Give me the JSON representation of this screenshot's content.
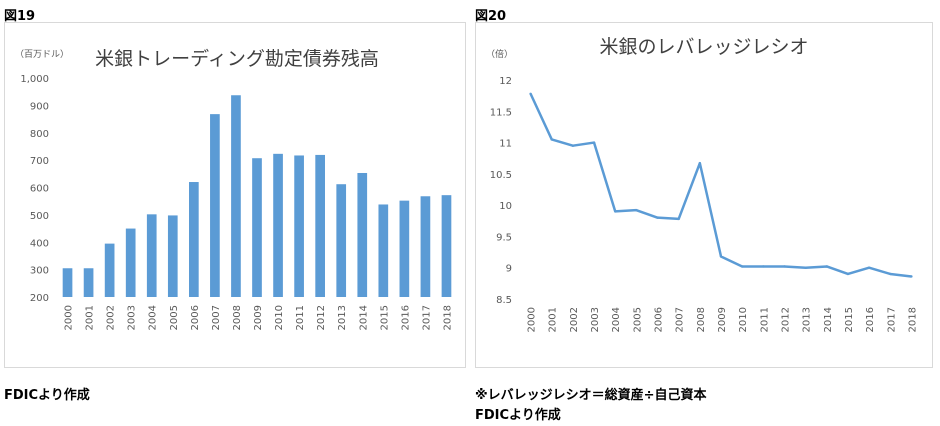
{
  "figures": [
    {
      "label": "図19",
      "source": "FDICより作成"
    },
    {
      "label": "図20",
      "note": "※レバレッジレシオ＝総資産÷自己資本",
      "source": "FDICより作成"
    }
  ],
  "colors": {
    "series": "#5b9bd5",
    "axis_text": "#595959",
    "gridline": "#d9d9d9"
  },
  "chart_data": [
    {
      "type": "bar",
      "title": "米銀トレーディング勘定債券残高",
      "unit_label": "（百万ドル）",
      "categories": [
        "2000",
        "2001",
        "2002",
        "2003",
        "2004",
        "2005",
        "2006",
        "2007",
        "2008",
        "2009",
        "2010",
        "2011",
        "2012",
        "2013",
        "2014",
        "2015",
        "2016",
        "2017",
        "2018"
      ],
      "values": [
        305,
        305,
        395,
        450,
        502,
        498,
        620,
        868,
        937,
        707,
        723,
        717,
        719,
        612,
        653,
        538,
        552,
        568,
        572
      ],
      "ylim": [
        200,
        1000
      ],
      "yticks": [
        200,
        300,
        400,
        500,
        600,
        700,
        800,
        900,
        1000
      ],
      "ytick_labels": [
        "200",
        "300",
        "400",
        "500",
        "600",
        "700",
        "800",
        "900",
        "1,000"
      ],
      "grid": false,
      "legend": "none"
    },
    {
      "type": "line",
      "title": "米銀のレバレッジレシオ",
      "unit_label": "（倍）",
      "categories": [
        "2000",
        "2001",
        "2002",
        "2003",
        "2004",
        "2005",
        "2006",
        "2007",
        "2008",
        "2009",
        "2010",
        "2011",
        "2012",
        "2013",
        "2014",
        "2015",
        "2016",
        "2017",
        "2018"
      ],
      "values": [
        11.78,
        11.05,
        10.95,
        11.0,
        9.9,
        9.92,
        9.8,
        9.78,
        10.67,
        9.18,
        9.02,
        9.02,
        9.02,
        9.0,
        9.02,
        8.9,
        9.0,
        8.9,
        8.86
      ],
      "ylim": [
        8.5,
        12
      ],
      "yticks": [
        8.5,
        9,
        9.5,
        10,
        10.5,
        11,
        11.5,
        12
      ],
      "ytick_labels": [
        "8.5",
        "9",
        "9.5",
        "10",
        "10.5",
        "11",
        "11.5",
        "12"
      ],
      "grid": false,
      "legend": "none"
    }
  ]
}
